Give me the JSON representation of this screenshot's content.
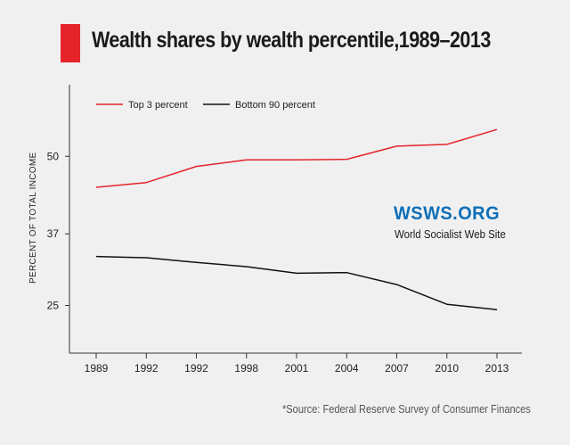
{
  "title": "Wealth shares by wealth percentile,1989–2013",
  "brand": {
    "name": "WSWS.ORG",
    "subtitle": "World Socialist Web Site"
  },
  "source": "*Source: Federal Reserve Survey of Consumer Finances",
  "colors": {
    "accent": "#e4232b",
    "brand": "#0d6fb8",
    "series_top": "#e4232b",
    "series_bottom": "#111111"
  },
  "chart_data": {
    "type": "line",
    "title": "Wealth shares by wealth percentile,1989–2013",
    "xlabel": "",
    "ylabel": "PERCENT OF TOTAL INCOME",
    "categories": [
      "1989",
      "1992",
      "1992",
      "1998",
      "2001",
      "2004",
      "2007",
      "2010",
      "2013"
    ],
    "yticks": [
      25,
      37,
      50
    ],
    "ylim": [
      17,
      62
    ],
    "grid": false,
    "legend_position": "top-left",
    "series": [
      {
        "name": "Top 3 percent",
        "color": "#e4232b",
        "values": [
          44.8,
          45.6,
          48.3,
          49.4,
          49.4,
          49.5,
          51.7,
          52.0,
          54.5
        ]
      },
      {
        "name": "Bottom 90 percent",
        "color": "#111111",
        "values": [
          33.2,
          33.0,
          32.2,
          31.5,
          30.4,
          30.5,
          28.5,
          25.2,
          24.3
        ]
      }
    ]
  }
}
